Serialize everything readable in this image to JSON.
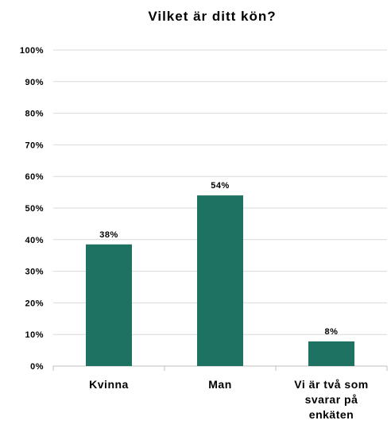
{
  "chart_data": {
    "type": "bar",
    "title": "Vilket är ditt kön?",
    "categories": [
      [
        "Kvinna"
      ],
      [
        "Man"
      ],
      [
        "Vi är två som",
        "svarar på",
        "enkäten"
      ]
    ],
    "values": [
      38.5,
      54,
      7.8
    ],
    "data_labels": [
      "38%",
      "54%",
      "8%"
    ],
    "ylim": [
      0,
      100
    ],
    "yticks": [
      0,
      10,
      20,
      30,
      40,
      50,
      60,
      70,
      80,
      90,
      100
    ],
    "ytick_labels": [
      "0%",
      "10%",
      "20%",
      "30%",
      "40%",
      "50%",
      "60%",
      "70%",
      "80%",
      "90%",
      "100%"
    ],
    "xlabel": "",
    "ylabel": "",
    "grid": true,
    "bar_color": "#1e7262",
    "grid_color": "#d9d9d9"
  }
}
